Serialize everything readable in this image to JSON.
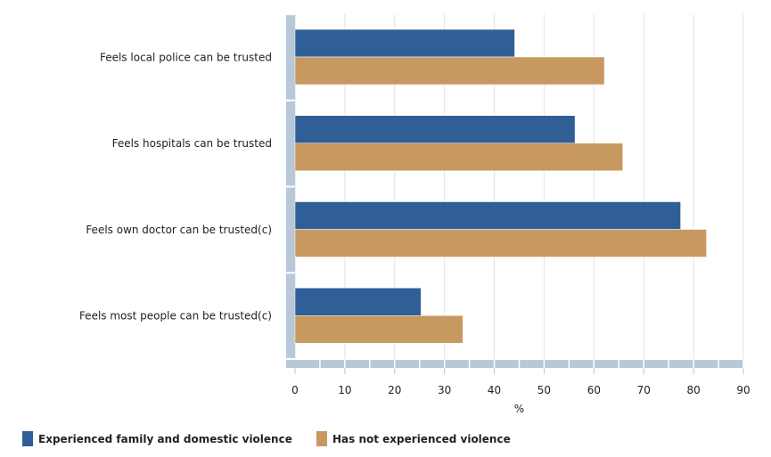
{
  "chart_data": {
    "type": "bar",
    "orientation": "horizontal",
    "categories": [
      "Feels local police can be trusted",
      "Feels hospitals can be trusted",
      "Feels own doctor can be trusted(c)",
      "Feels most people can be trusted(c)"
    ],
    "series": [
      {
        "name": "Experienced family and domestic violence",
        "color": "#2f5f96",
        "values": [
          44.1,
          56.2,
          77.4,
          25.3
        ]
      },
      {
        "name": "Has not experienced violence",
        "color": "#c89861",
        "values": [
          62.1,
          65.8,
          82.6,
          33.7
        ]
      }
    ],
    "xlabel": "%",
    "xlim": [
      0,
      90
    ],
    "xticks": [
      "0",
      "10",
      "20",
      "30",
      "40",
      "50",
      "60",
      "70",
      "80",
      "90"
    ],
    "grid": true,
    "legend_position": "bottom-left"
  }
}
